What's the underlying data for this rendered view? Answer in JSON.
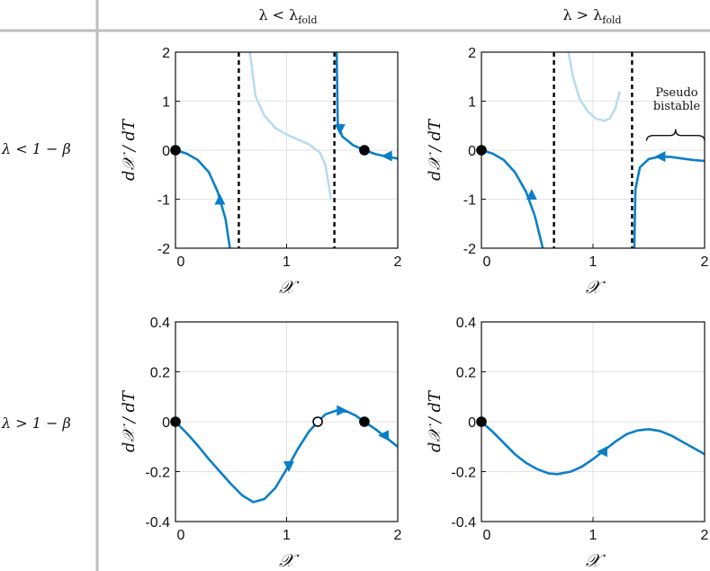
{
  "layout_headers": {
    "col1": "λ < λ",
    "col1_sub": "fold",
    "col2": "λ > λ",
    "col2_sub": "fold",
    "row1": "λ < 1 − β",
    "row2": "λ > 1 − β"
  },
  "colors": {
    "curve": "#0a7fc8",
    "curve_faint": "#b9dcef",
    "asymptote": "#000000",
    "grid": "#e2e2e2",
    "divider": "#bdbdbd"
  },
  "chart_data": [
    {
      "type": "line",
      "panel": "top-left",
      "xlabel": "𝒳",
      "ylabel": "d𝒳 / dT",
      "xlim": [
        0,
        2
      ],
      "ylim": [
        -2,
        2
      ],
      "xticks": [
        "0",
        "1",
        "2"
      ],
      "yticks": [
        "2",
        "1",
        "0",
        "-1",
        "-2"
      ],
      "xtick_values": [
        0,
        1,
        2
      ],
      "ytick_values": [
        2,
        1,
        0,
        -1,
        -2
      ],
      "asymptotes": [
        0.57,
        1.43
      ],
      "series": [
        {
          "style": "solid",
          "x": [
            0,
            0.1,
            0.2,
            0.3,
            0.38,
            0.45,
            0.49
          ],
          "y": [
            0,
            -0.07,
            -0.2,
            -0.45,
            -0.85,
            -1.4,
            -2
          ]
        },
        {
          "style": "faint",
          "x": [
            0.67,
            0.72,
            0.8,
            0.9,
            1.0,
            1.1,
            1.2,
            1.3,
            1.35,
            1.4
          ],
          "y": [
            2,
            1.1,
            0.7,
            0.45,
            0.32,
            0.22,
            0.12,
            -0.05,
            -0.3,
            -1.0
          ]
        },
        {
          "style": "solid",
          "x": [
            1.45,
            1.46,
            1.5,
            1.6,
            1.7,
            1.8,
            1.9,
            2.0
          ],
          "y": [
            2,
            0.55,
            0.28,
            0.1,
            0.0,
            -0.08,
            -0.13,
            -0.17
          ]
        }
      ],
      "equilibria": [
        {
          "x": 0,
          "y": 0,
          "stable": true
        },
        {
          "x": 1.7,
          "y": 0,
          "stable": true
        }
      ],
      "arrows": [
        {
          "x": 0.4,
          "y": -1.0,
          "dir": "up"
        },
        {
          "x": 1.48,
          "y": 0.42,
          "dir": "down"
        },
        {
          "x": 1.9,
          "y": -0.12,
          "dir": "left"
        }
      ]
    },
    {
      "type": "line",
      "panel": "top-right",
      "xlabel": "𝒳",
      "ylabel": "d𝒳 / dT",
      "xlim": [
        0,
        2
      ],
      "ylim": [
        -2,
        2
      ],
      "xticks": [
        "0",
        "1",
        "2"
      ],
      "yticks": [
        "2",
        "1",
        "0",
        "-1",
        "-2"
      ],
      "xtick_values": [
        0,
        1,
        2
      ],
      "ytick_values": [
        2,
        1,
        0,
        -1,
        -2
      ],
      "asymptotes": [
        0.65,
        1.35
      ],
      "annotation": {
        "line1": "Pseudo",
        "line2": "bistable"
      },
      "series": [
        {
          "style": "solid",
          "x": [
            0,
            0.1,
            0.2,
            0.3,
            0.4,
            0.48,
            0.55
          ],
          "y": [
            0,
            -0.07,
            -0.2,
            -0.45,
            -0.85,
            -1.35,
            -2
          ]
        },
        {
          "style": "faint",
          "x": [
            0.78,
            0.82,
            0.88,
            0.95,
            1.02,
            1.1,
            1.15,
            1.2,
            1.24
          ],
          "y": [
            2,
            1.5,
            1.05,
            0.8,
            0.65,
            0.6,
            0.65,
            0.85,
            1.2
          ]
        },
        {
          "style": "solid",
          "x": [
            1.37,
            1.38,
            1.42,
            1.5,
            1.6,
            1.7,
            1.8,
            1.9,
            2.0
          ],
          "y": [
            -2,
            -0.8,
            -0.35,
            -0.18,
            -0.13,
            -0.14,
            -0.17,
            -0.2,
            -0.22
          ]
        }
      ],
      "equilibria": [
        {
          "x": 0,
          "y": 0,
          "stable": true
        }
      ],
      "arrows": [
        {
          "x": 0.45,
          "y": -0.9,
          "dir": "up"
        },
        {
          "x": 1.6,
          "y": -0.13,
          "dir": "left"
        }
      ]
    },
    {
      "type": "line",
      "panel": "bottom-left",
      "xlabel": "𝒳",
      "ylabel": "d𝒳 / dT",
      "xlim": [
        0,
        2
      ],
      "ylim": [
        -0.4,
        0.4
      ],
      "xticks": [
        "0",
        "1",
        "2"
      ],
      "yticks": [
        "0.4",
        "0.2",
        "0",
        "-0.2",
        "-0.4"
      ],
      "xtick_values": [
        0,
        1,
        2
      ],
      "ytick_values": [
        0.4,
        0.2,
        0,
        -0.2,
        -0.4
      ],
      "asymptotes": [],
      "series": [
        {
          "style": "solid",
          "x": [
            0,
            0.1,
            0.2,
            0.3,
            0.4,
            0.5,
            0.6,
            0.7,
            0.8,
            0.9,
            1.0,
            1.1,
            1.2,
            1.28,
            1.35,
            1.45,
            1.55,
            1.62,
            1.7,
            1.8,
            1.9,
            2.0
          ],
          "y": [
            0,
            -0.045,
            -0.095,
            -0.15,
            -0.2,
            -0.25,
            -0.295,
            -0.322,
            -0.31,
            -0.265,
            -0.19,
            -0.11,
            -0.04,
            0.0,
            0.03,
            0.045,
            0.04,
            0.025,
            0.0,
            -0.03,
            -0.065,
            -0.1
          ]
        }
      ],
      "equilibria": [
        {
          "x": 0,
          "y": 0,
          "stable": true
        },
        {
          "x": 1.28,
          "y": 0,
          "stable": false
        },
        {
          "x": 1.7,
          "y": 0,
          "stable": true
        }
      ],
      "arrows": [
        {
          "x": 1.02,
          "y": -0.18,
          "dir": "down"
        },
        {
          "x": 1.5,
          "y": 0.045,
          "dir": "right"
        },
        {
          "x": 1.87,
          "y": -0.055,
          "dir": "left"
        }
      ]
    },
    {
      "type": "line",
      "panel": "bottom-right",
      "xlabel": "𝒳",
      "ylabel": "d𝒳 / dT",
      "xlim": [
        0,
        2
      ],
      "ylim": [
        -0.4,
        0.4
      ],
      "xticks": [
        "0",
        "1",
        "2"
      ],
      "yticks": [
        "0.4",
        "0.2",
        "0",
        "-0.2",
        "-0.4"
      ],
      "xtick_values": [
        0,
        1,
        2
      ],
      "ytick_values": [
        0.4,
        0.2,
        0,
        -0.2,
        -0.4
      ],
      "asymptotes": [],
      "series": [
        {
          "style": "solid",
          "x": [
            0,
            0.1,
            0.2,
            0.3,
            0.4,
            0.5,
            0.6,
            0.68,
            0.8,
            0.9,
            1.0,
            1.1,
            1.2,
            1.3,
            1.4,
            1.5,
            1.6,
            1.7,
            1.8,
            1.9,
            2.0
          ],
          "y": [
            0,
            -0.04,
            -0.085,
            -0.13,
            -0.165,
            -0.19,
            -0.207,
            -0.21,
            -0.2,
            -0.18,
            -0.15,
            -0.115,
            -0.08,
            -0.05,
            -0.035,
            -0.03,
            -0.037,
            -0.055,
            -0.08,
            -0.105,
            -0.13
          ]
        }
      ],
      "equilibria": [
        {
          "x": 0,
          "y": 0,
          "stable": true
        }
      ],
      "arrows": [
        {
          "x": 1.08,
          "y": -0.12,
          "dir": "left"
        }
      ]
    }
  ]
}
